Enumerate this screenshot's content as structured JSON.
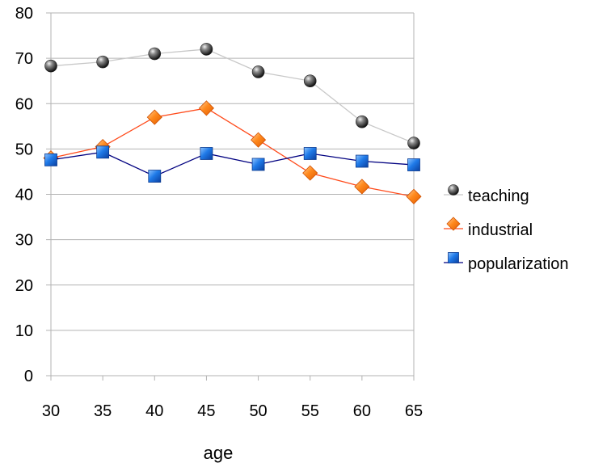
{
  "chart_data": {
    "type": "line",
    "title": "",
    "xlabel": "age",
    "ylabel": "",
    "x": [
      30,
      35,
      40,
      45,
      50,
      55,
      60,
      65
    ],
    "ylim": [
      0,
      80
    ],
    "yticks": [
      0,
      10,
      20,
      30,
      40,
      50,
      60,
      70,
      80
    ],
    "grid": true,
    "legend_position": "right",
    "series": [
      {
        "name": "teaching",
        "values": [
          68.3,
          69.2,
          71.0,
          72.0,
          67.0,
          65.0,
          56.0,
          51.3
        ],
        "color": "#333333",
        "line_color": "#c8c8c8",
        "marker": "sphere"
      },
      {
        "name": "industrial",
        "values": [
          48.0,
          50.5,
          57.0,
          59.0,
          52.0,
          44.7,
          41.7,
          39.5
        ],
        "color": "#ff7f1e",
        "line_color": "#ff4a1a",
        "marker": "diamond"
      },
      {
        "name": "popularization",
        "values": [
          47.6,
          49.3,
          44.0,
          49.0,
          46.6,
          49.0,
          47.3,
          46.5
        ],
        "color": "#1a6fe0",
        "line_color": "#000080",
        "marker": "square"
      }
    ]
  }
}
